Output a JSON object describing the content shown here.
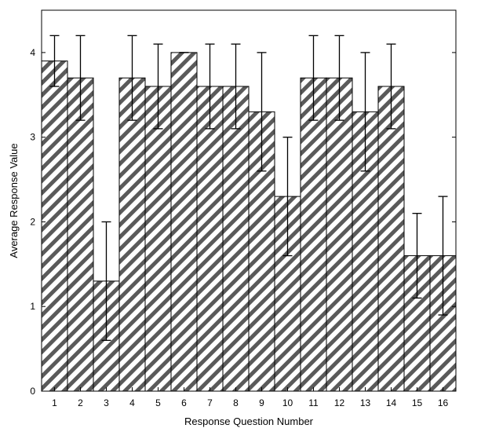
{
  "chart_data": {
    "type": "bar",
    "title": "",
    "xlabel": "Response Question Number",
    "ylabel": "Average Response Value",
    "categories": [
      "1",
      "2",
      "3",
      "4",
      "5",
      "6",
      "7",
      "8",
      "9",
      "10",
      "11",
      "12",
      "13",
      "14",
      "15",
      "16"
    ],
    "values": [
      3.9,
      3.7,
      1.3,
      3.7,
      3.6,
      4.0,
      3.6,
      3.6,
      3.3,
      2.3,
      3.7,
      3.7,
      3.3,
      3.6,
      1.6,
      1.6
    ],
    "error_low": [
      3.6,
      3.2,
      0.6,
      3.2,
      3.1,
      4.0,
      3.1,
      3.1,
      2.6,
      1.6,
      3.2,
      3.2,
      2.6,
      3.1,
      1.1,
      0.9
    ],
    "error_high": [
      4.2,
      4.2,
      2.0,
      4.2,
      4.1,
      4.0,
      4.1,
      4.1,
      4.0,
      3.0,
      4.2,
      4.2,
      4.0,
      4.1,
      2.1,
      2.3
    ],
    "ylim": [
      0,
      4.5
    ],
    "yticks": [
      0,
      1,
      2,
      3,
      4
    ],
    "grid": false,
    "bar_fill": "hatched diagonal",
    "colors": {
      "hatch": "#5a5a5a",
      "bar_edge": "#000000",
      "background": "#ffffff"
    }
  }
}
